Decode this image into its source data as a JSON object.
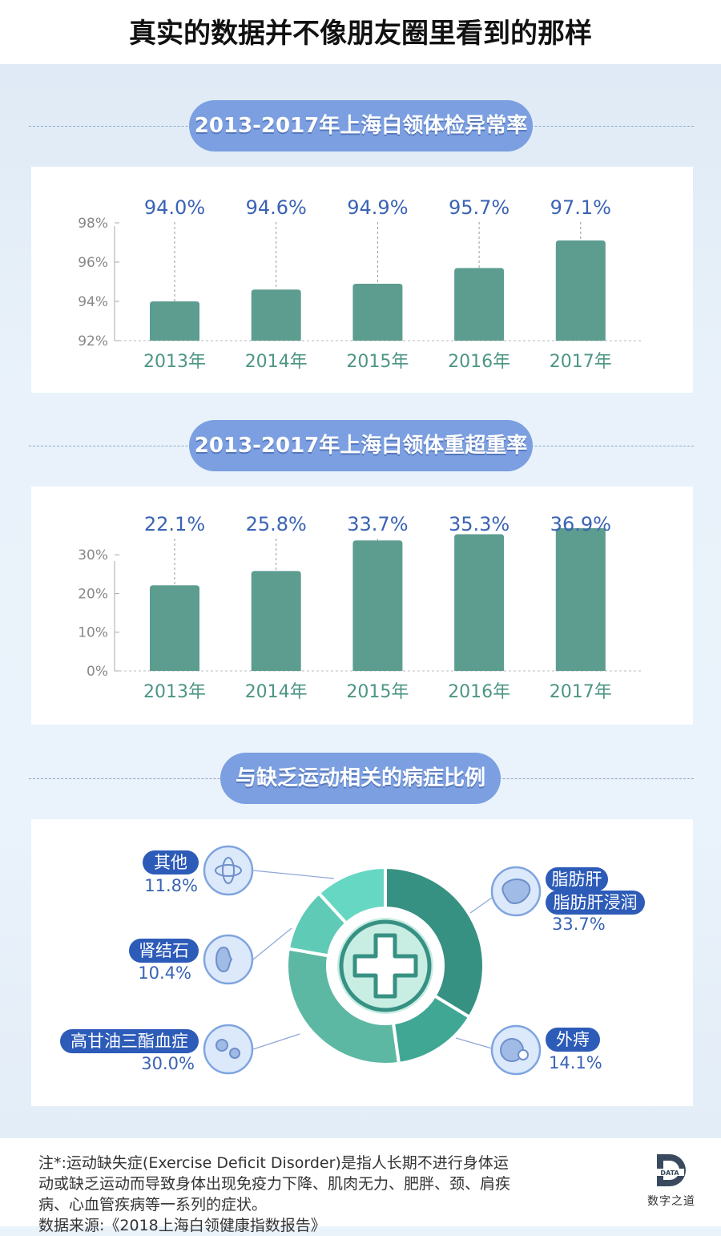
{
  "page_title": "真实的数据并不像朋友圈里看到的那样",
  "colors": {
    "bar": "#5c9d90",
    "pill": "#7b9fe0",
    "value": "#3a63b4",
    "xlabel": "#4d9585",
    "axis": "#888888"
  },
  "chart_data": [
    {
      "type": "bar",
      "title": "2013-2017年上海白领体检异常率",
      "categories": [
        "2013年",
        "2014年",
        "2015年",
        "2016年",
        "2017年"
      ],
      "values": [
        94.0,
        94.6,
        94.9,
        95.7,
        97.1
      ],
      "value_labels": [
        "94.0%",
        "94.6%",
        "94.9%",
        "95.7%",
        "97.1%"
      ],
      "yticks": [
        "92%",
        "94%",
        "96%",
        "98%"
      ],
      "ylim": [
        92,
        98
      ]
    },
    {
      "type": "bar",
      "title": "2013-2017年上海白领体重超重率",
      "categories": [
        "2013年",
        "2014年",
        "2015年",
        "2016年",
        "2017年"
      ],
      "values": [
        22.1,
        25.8,
        33.7,
        35.3,
        36.9
      ],
      "value_labels": [
        "22.1%",
        "25.8%",
        "33.7%",
        "35.3%",
        "36.9%"
      ],
      "yticks": [
        "0%",
        "10%",
        "20%",
        "30%"
      ],
      "ylim": [
        0,
        35
      ]
    },
    {
      "type": "pie",
      "title": "与缺乏运动相关的病症比例",
      "slices": [
        {
          "name": "脂肪肝\n脂肪肝浸润",
          "value": 33.7,
          "label": "33.7%",
          "color": "#379183"
        },
        {
          "name": "外痔",
          "value": 14.1,
          "label": "14.1%",
          "color": "#3fa794"
        },
        {
          "name": "高甘油三酯血症",
          "value": 30.0,
          "label": "30.0%",
          "color": "#5cb8a2"
        },
        {
          "name": "肾结石",
          "value": 10.4,
          "label": "10.4%",
          "color": "#5fcab5"
        },
        {
          "name": "其他",
          "value": 11.8,
          "label": "11.8%",
          "color": "#66d7c3"
        }
      ]
    }
  ],
  "pie_labels": {
    "other": {
      "name": "其他",
      "pct": "11.8%",
      "icon": "atom-icon"
    },
    "kidney": {
      "name": "肾结石",
      "pct": "10.4%",
      "icon": "kidney-icon"
    },
    "lipid": {
      "name": "高甘油三酯血症",
      "pct": "30.0%",
      "icon": "blood-cell-icon"
    },
    "liver": {
      "name1": "脂肪肝",
      "name2": "脂肪肝浸润",
      "pct": "33.7%",
      "icon": "liver-icon"
    },
    "hemorrhoid": {
      "name": "外痔",
      "pct": "14.1%",
      "icon": "hemorrhoid-icon"
    }
  },
  "footer": {
    "note": "注*:运动缺失症(Exercise Deficit Disorder)是指人长期不进行身体运动或缺乏运动而导致身体出现免疫力下降、肌肉无力、肥胖、颈、肩疾病、心血管疾病等一系列的症状。",
    "source": "数据来源:《2018上海白领健康指数报告》",
    "logo_word": "DATA",
    "logo_name": "数字之道"
  }
}
